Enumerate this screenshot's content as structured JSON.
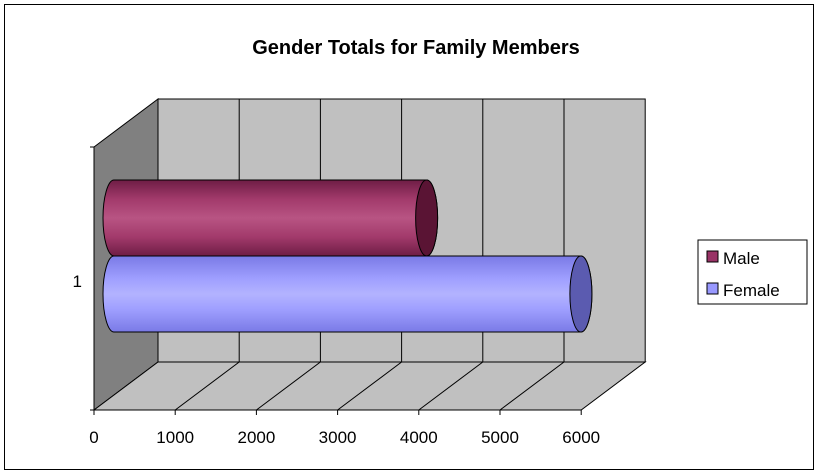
{
  "chart_data": {
    "type": "bar",
    "orientation": "horizontal",
    "style": "3d-cylinder",
    "title": "Gender Totals for Family Members",
    "categories": [
      "1"
    ],
    "series": [
      {
        "name": "Male",
        "values": [
          3850
        ],
        "color": "#993366"
      },
      {
        "name": "Female",
        "values": [
          5750
        ],
        "color": "#9999FF"
      }
    ],
    "xlim": [
      0,
      6000
    ],
    "x_ticks": [
      "0",
      "1000",
      "2000",
      "3000",
      "4000",
      "5000",
      "6000"
    ],
    "grid": true,
    "legend": "right",
    "wall_color": "#C0C0C0"
  }
}
